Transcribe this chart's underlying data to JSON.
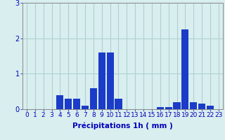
{
  "hours": [
    0,
    1,
    2,
    3,
    4,
    5,
    6,
    7,
    8,
    9,
    10,
    11,
    12,
    13,
    14,
    15,
    16,
    17,
    18,
    19,
    20,
    21,
    22,
    23
  ],
  "values": [
    0,
    0,
    0,
    0,
    0.4,
    0.3,
    0.3,
    0.1,
    0.6,
    1.6,
    1.6,
    0.3,
    0,
    0,
    0,
    0,
    0.05,
    0.05,
    0.2,
    2.25,
    0.2,
    0.15,
    0.1,
    0
  ],
  "bar_color": "#1a3cc8",
  "background_color": "#d9eeee",
  "grid_color": "#b0d0d0",
  "axis_label_color": "#0000bb",
  "tick_color": "#0000bb",
  "xlabel": "Précipitations 1h ( mm )",
  "ylim": [
    0,
    3
  ],
  "yticks": [
    0,
    1,
    2,
    3
  ],
  "xlabel_fontsize": 7.5,
  "tick_fontsize": 6.5,
  "fig_width": 3.2,
  "fig_height": 2.0,
  "dpi": 100
}
